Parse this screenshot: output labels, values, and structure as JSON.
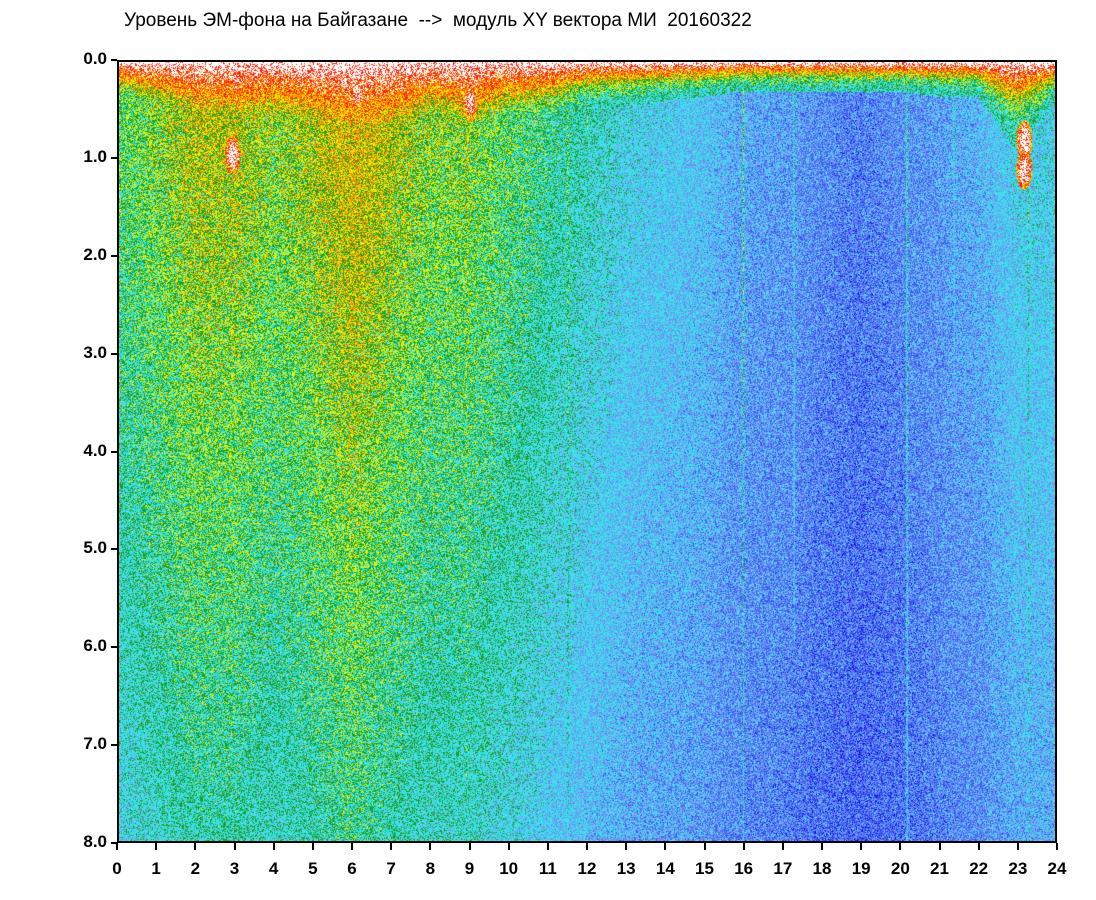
{
  "chart_data": {
    "type": "heatmap",
    "title": "Уровень ЭМ-фона на Байгазане  -->  модуль XY вектора МИ  20160322",
    "xlabel": "",
    "ylabel": "",
    "xlim": [
      0,
      24
    ],
    "ylim": [
      8.0,
      0.0
    ],
    "y_inverted": true,
    "x_ticks": [
      "0",
      "1",
      "2",
      "3",
      "4",
      "5",
      "6",
      "7",
      "8",
      "9",
      "10",
      "11",
      "12",
      "13",
      "14",
      "15",
      "16",
      "17",
      "18",
      "19",
      "20",
      "21",
      "22",
      "23",
      "24"
    ],
    "y_ticks": [
      "0.0",
      "1.0",
      "2.0",
      "3.0",
      "4.0",
      "5.0",
      "6.0",
      "7.0",
      "8.0"
    ],
    "colorscale": [
      "#1414e6",
      "#3c5af0",
      "#6e8cf5",
      "#5ad2f0",
      "#28e6e6",
      "#1e9e1e",
      "#f0f000",
      "#ff8c00",
      "#ff1e00",
      "#ffffff"
    ],
    "background_level": [
      [
        0,
        0.45
      ],
      [
        1,
        0.5
      ],
      [
        2,
        0.55
      ],
      [
        3,
        0.55
      ],
      [
        4,
        0.5
      ],
      [
        5,
        0.55
      ],
      [
        6,
        0.6
      ],
      [
        7,
        0.55
      ],
      [
        8,
        0.5
      ],
      [
        9,
        0.5
      ],
      [
        10,
        0.45
      ],
      [
        11,
        0.4
      ],
      [
        12,
        0.35
      ],
      [
        13,
        0.3
      ],
      [
        14,
        0.28
      ],
      [
        15,
        0.25
      ],
      [
        16,
        0.2
      ],
      [
        17,
        0.18
      ],
      [
        18,
        0.15
      ],
      [
        19,
        0.12
      ],
      [
        20,
        0.15
      ],
      [
        21,
        0.18
      ],
      [
        22,
        0.22
      ],
      [
        23,
        0.3
      ],
      [
        24,
        0.3
      ]
    ],
    "surface_band_depth": [
      [
        0,
        0.5
      ],
      [
        1,
        0.8
      ],
      [
        2,
        1.2
      ],
      [
        3,
        1.3
      ],
      [
        4,
        1.1
      ],
      [
        5,
        1.4
      ],
      [
        6,
        1.9
      ],
      [
        7,
        1.6
      ],
      [
        8,
        1.0
      ],
      [
        9,
        1.3
      ],
      [
        10,
        0.9
      ],
      [
        11,
        0.8
      ],
      [
        12,
        0.5
      ],
      [
        13,
        0.45
      ],
      [
        14,
        0.4
      ],
      [
        15,
        0.35
      ],
      [
        16,
        0.3
      ],
      [
        17,
        0.3
      ],
      [
        18,
        0.3
      ],
      [
        19,
        0.3
      ],
      [
        20,
        0.3
      ],
      [
        21,
        0.35
      ],
      [
        22,
        0.35
      ],
      [
        23,
        0.9
      ],
      [
        24,
        0.4
      ]
    ],
    "streaks": [
      {
        "x": 0.7,
        "depth": 2.2,
        "level": 0.6
      },
      {
        "x": 1.4,
        "depth": 3.0,
        "level": 0.55
      },
      {
        "x": 2.3,
        "depth": 6.0,
        "level": 0.55
      },
      {
        "x": 2.6,
        "depth": 4.0,
        "level": 0.6
      },
      {
        "x": 3.4,
        "depth": 8.0,
        "level": 0.65
      },
      {
        "x": 3.8,
        "depth": 5.0,
        "level": 0.6
      },
      {
        "x": 4.6,
        "depth": 4.0,
        "level": 0.55
      },
      {
        "x": 5.9,
        "depth": 8.0,
        "level": 0.7
      },
      {
        "x": 6.3,
        "depth": 8.0,
        "level": 0.7
      },
      {
        "x": 6.6,
        "depth": 5.5,
        "level": 0.65
      },
      {
        "x": 7.1,
        "depth": 6.0,
        "level": 0.65
      },
      {
        "x": 7.6,
        "depth": 4.5,
        "level": 0.6
      },
      {
        "x": 8.9,
        "depth": 8.0,
        "level": 0.7
      },
      {
        "x": 9.2,
        "depth": 4.0,
        "level": 0.6
      },
      {
        "x": 9.7,
        "depth": 5.0,
        "level": 0.6
      },
      {
        "x": 10.4,
        "depth": 3.5,
        "level": 0.55
      },
      {
        "x": 11.5,
        "depth": 8.0,
        "level": 0.7
      },
      {
        "x": 12.0,
        "depth": 3.0,
        "level": 0.55
      },
      {
        "x": 13.6,
        "depth": 2.0,
        "level": 0.5
      },
      {
        "x": 16.0,
        "depth": 8.0,
        "level": 0.55
      },
      {
        "x": 17.3,
        "depth": 6.0,
        "level": 0.5
      },
      {
        "x": 20.2,
        "depth": 8.0,
        "level": 0.55
      },
      {
        "x": 21.4,
        "depth": 4.0,
        "level": 0.5
      },
      {
        "x": 22.6,
        "depth": 3.0,
        "level": 0.5
      },
      {
        "x": 23.3,
        "depth": 8.0,
        "level": 0.6
      }
    ],
    "hot_spots": [
      {
        "x": 2.9,
        "y": 0.95,
        "level": 1.0
      },
      {
        "x": 23.2,
        "y": 0.8,
        "level": 1.0
      },
      {
        "x": 23.2,
        "y": 1.1,
        "level": 1.0
      },
      {
        "x": 9.0,
        "y": 0.4,
        "level": 0.95
      },
      {
        "x": 6.1,
        "y": 0.3,
        "level": 0.95
      }
    ],
    "grid": false,
    "legend": "none"
  }
}
